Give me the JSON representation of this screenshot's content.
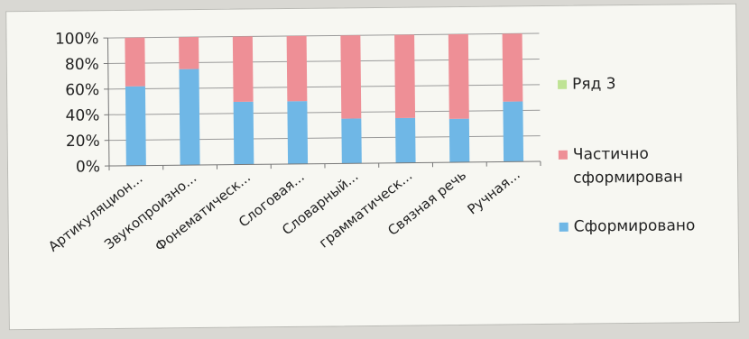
{
  "chart_data": {
    "type": "bar",
    "stacked": "percent",
    "categories": [
      "Артикуляцион...",
      "Звукопроизно...",
      "Фонематическ...",
      "Слоговая...",
      "Словарный...",
      "грамматическ...",
      "Связная речь",
      "Ручная..."
    ],
    "series": [
      {
        "name": "Сформировано",
        "color": "#6fb7e6",
        "values": [
          62,
          75,
          49,
          49,
          35,
          35,
          34,
          47
        ]
      },
      {
        "name": "Частично сформирован",
        "color": "#ee8f96",
        "values": [
          38,
          25,
          51,
          51,
          65,
          65,
          66,
          53
        ]
      },
      {
        "name": "Ряд 3",
        "color": "#bfe394",
        "values": [
          0,
          0,
          0,
          0,
          0,
          0,
          0,
          0
        ]
      }
    ],
    "ylim": [
      0,
      100
    ],
    "y_ticks": [
      "0%",
      "20%",
      "40%",
      "60%",
      "80%",
      "100%"
    ],
    "grid": true,
    "legend_position": "right",
    "legend": [
      {
        "label_lines": [
          "Ряд 3"
        ],
        "color": "#bfe394"
      },
      {
        "label_lines": [
          "Частично",
          "сформирован"
        ],
        "color": "#ee8f96"
      },
      {
        "label_lines": [
          "Сформировано"
        ],
        "color": "#6fb7e6"
      }
    ]
  }
}
